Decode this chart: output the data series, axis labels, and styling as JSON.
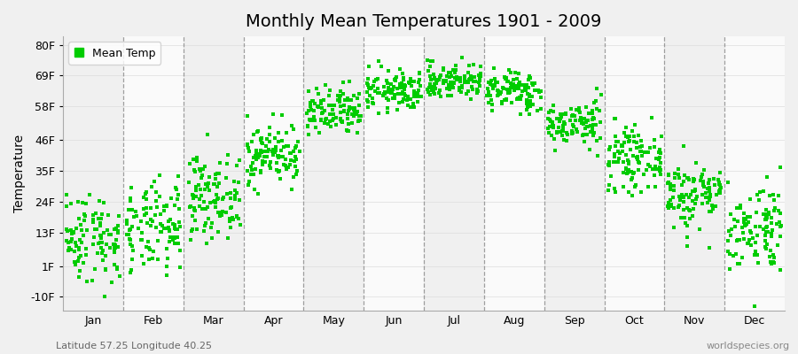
{
  "title": "Monthly Mean Temperatures 1901 - 2009",
  "ylabel": "Temperature",
  "xlabel": "",
  "background_color": "#f0f0f0",
  "plot_bg_color": "#ffffff",
  "band_colors": [
    "#f0f0f0",
    "#fafafa"
  ],
  "dot_color": "#00cc00",
  "dot_size": 8,
  "dot_marker": "s",
  "yticks": [
    -10,
    1,
    13,
    24,
    35,
    46,
    58,
    69,
    80
  ],
  "ytick_labels": [
    "-10F",
    "1F",
    "13F",
    "24F",
    "35F",
    "46F",
    "58F",
    "69F",
    "80F"
  ],
  "ylim": [
    -15,
    83
  ],
  "months": [
    "Jan",
    "Feb",
    "Mar",
    "Apr",
    "May",
    "Jun",
    "Jul",
    "Aug",
    "Sep",
    "Oct",
    "Nov",
    "Dec"
  ],
  "legend_label": "Mean Temp",
  "footer_left": "Latitude 57.25 Longitude 40.25",
  "footer_right": "worldspecies.org",
  "n_years": 109,
  "monthly_means_C": [
    -11.5,
    -10.0,
    -3.5,
    5.0,
    13.0,
    17.5,
    19.5,
    17.5,
    11.0,
    4.0,
    -3.0,
    -9.5
  ],
  "monthly_stds_C": [
    4.5,
    4.5,
    4.0,
    3.0,
    2.5,
    2.0,
    1.8,
    2.0,
    2.2,
    3.0,
    3.5,
    4.5
  ]
}
